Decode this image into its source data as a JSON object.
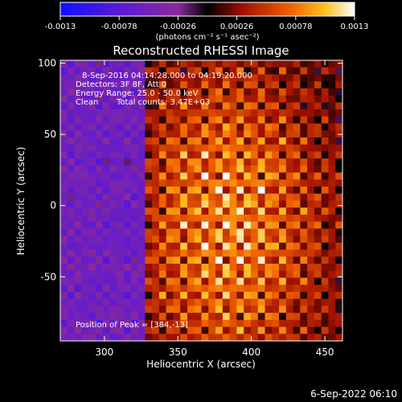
{
  "chart_data": {
    "type": "heatmap",
    "title": "Reconstructed RHESSI Image",
    "xlabel": "Heliocentric X (arcsec)",
    "ylabel": "Heliocentric Y (arcsec)",
    "xlim": [
      270,
      462
    ],
    "ylim": [
      -95,
      102
    ],
    "x_ticks": [
      "300",
      "350",
      "400",
      "450"
    ],
    "y_ticks": [
      "100",
      "50",
      "0",
      "-50"
    ],
    "colorbar": {
      "ticks": [
        "-0.0013",
        "-0.00078",
        "-0.00026",
        "0.00026",
        "0.00078",
        "0.0013"
      ],
      "range": [
        -0.0013,
        0.0013
      ],
      "unit_label": "(photons cm⁻² s⁻¹ asec⁻²)"
    },
    "annotations": [
      "8-Sep-2016 04:14:28.000 to 04:19:20.000",
      "Detectors: 3F 8F, Att 0",
      "Energy Range: 25.0 - 50.0 keV",
      "Clean",
      "Total counts: 3.47E+03"
    ],
    "peak_label": "Position of Peak = [384,-13]",
    "peak": {
      "x": 384,
      "y": -13
    },
    "footer_timestamp": "6-Sep-2022 06:10"
  }
}
